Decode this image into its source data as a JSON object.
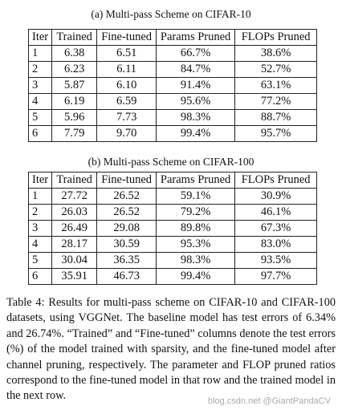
{
  "tables": [
    {
      "title": "(a) Multi-pass Scheme on CIFAR-10",
      "header": [
        "Iter",
        "Trained",
        "Fine-tuned",
        "Params Pruned",
        "FLOPs Pruned"
      ],
      "rows": [
        [
          "1",
          "6.38",
          "6.51",
          "66.7%",
          "38.6%"
        ],
        [
          "2",
          "6.23",
          "6.11",
          "84.7%",
          "52.7%"
        ],
        [
          "3",
          "5.87",
          "6.10",
          "91.4%",
          "63.1%"
        ],
        [
          "4",
          "6.19",
          "6.59",
          "95.6%",
          "77.2%"
        ],
        [
          "5",
          "5.96",
          "7.73",
          "98.3%",
          "88.7%"
        ],
        [
          "6",
          "7.79",
          "9.70",
          "99.4%",
          "95.7%"
        ]
      ]
    },
    {
      "title": "(b) Multi-pass Scheme on CIFAR-100",
      "header": [
        "Iter",
        "Trained",
        "Fine-tuned",
        "Params Pruned",
        "FLOPs Pruned"
      ],
      "rows": [
        [
          "1",
          "27.72",
          "26.52",
          "59.1%",
          "30.9%"
        ],
        [
          "2",
          "26.03",
          "26.52",
          "79.2%",
          "46.1%"
        ],
        [
          "3",
          "26.49",
          "29.08",
          "89.8%",
          "67.3%"
        ],
        [
          "4",
          "28.17",
          "30.59",
          "95.3%",
          "83.0%"
        ],
        [
          "5",
          "30.04",
          "36.35",
          "98.3%",
          "93.5%"
        ],
        [
          "6",
          "35.91",
          "46.73",
          "99.4%",
          "97.7%"
        ]
      ]
    }
  ],
  "caption": "Table 4: Results for multi-pass scheme on CIFAR-10 and CIFAR-100 datasets, using VGGNet. The baseline model has test errors of 6.34% and 26.74%. “Trained” and “Fine-tuned” columns denote the test errors (%) of the model trained with sparsity, and the fine-tuned model after channel pruning, respectively. The parameter and FLOP pruned ratios correspond to the fine-tuned model in that row and the trained model in the next row.",
  "watermark": "blog.csdn.net @GiantPandaCV"
}
